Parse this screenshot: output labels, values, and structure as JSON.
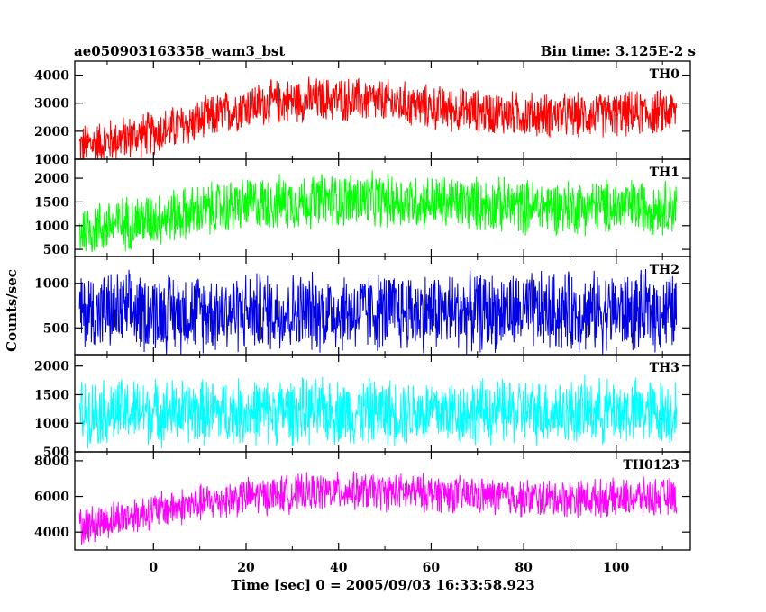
{
  "header": {
    "title": "ae050903163358_wam3_bst",
    "bin_time": "Bin time: 3.125E-2 s"
  },
  "chart_data": {
    "type": "line",
    "xlabel": "Time [sec] 0 = 2005/09/03 16:33:58.923",
    "ylabel": "Counts/sec",
    "xlim": [
      -17,
      116
    ],
    "x_ticks": [
      0,
      20,
      40,
      60,
      80,
      100
    ],
    "x_range_data": [
      -16,
      113
    ],
    "panels": [
      {
        "name": "TH0",
        "color": "#ff0000",
        "ylim": [
          1000,
          4500
        ],
        "y_ticks": [
          1000,
          2000,
          3000,
          4000
        ],
        "trend_t": [
          -16,
          0,
          10,
          20,
          30,
          40,
          50,
          60,
          70,
          80,
          90,
          100,
          113
        ],
        "trend_v": [
          1450,
          1950,
          2350,
          2900,
          3100,
          3150,
          3050,
          2850,
          2700,
          2600,
          2550,
          2600,
          2700
        ],
        "noise_amp": 900
      },
      {
        "name": "TH1",
        "color": "#00ff00",
        "ylim": [
          350,
          2400
        ],
        "y_ticks": [
          500,
          1000,
          1500,
          2000
        ],
        "trend_t": [
          -16,
          0,
          20,
          40,
          60,
          80,
          100,
          113
        ],
        "trend_v": [
          900,
          1150,
          1450,
          1550,
          1500,
          1400,
          1400,
          1400
        ],
        "noise_amp": 650
      },
      {
        "name": "TH2",
        "color": "#0000e6",
        "ylim": [
          200,
          1300
        ],
        "y_ticks": [
          500,
          1000
        ],
        "trend_t": [
          -16,
          113
        ],
        "trend_v": [
          680,
          680
        ],
        "noise_amp": 500
      },
      {
        "name": "TH3",
        "color": "#00ffff",
        "ylim": [
          500,
          2200
        ],
        "y_ticks": [
          500,
          1000,
          1500,
          2000
        ],
        "trend_t": [
          -16,
          113
        ],
        "trend_v": [
          1200,
          1200
        ],
        "noise_amp": 650
      },
      {
        "name": "TH0123",
        "color": "#ff00ff",
        "ylim": [
          3000,
          8500
        ],
        "y_ticks": [
          4000,
          6000,
          8000
        ],
        "trend_t": [
          -16,
          0,
          20,
          40,
          60,
          80,
          100,
          113
        ],
        "trend_v": [
          4300,
          5200,
          6000,
          6300,
          6200,
          5900,
          5900,
          6000
        ],
        "noise_amp": 1200
      }
    ]
  }
}
